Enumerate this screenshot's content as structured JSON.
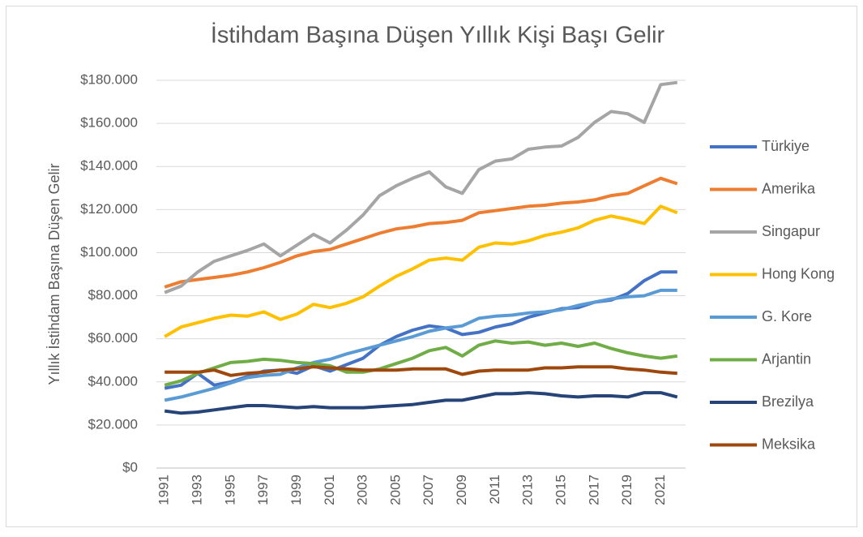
{
  "chart_data": {
    "type": "line",
    "title": "İstihdam Başına Düşen Yıllık Kişi Başı Gelir",
    "y_label": "Yıllık İstihdam Başına Düşen Gelir",
    "categories": [
      "1991",
      null,
      "1993",
      null,
      "1995",
      null,
      "1997",
      null,
      "1999",
      null,
      "2001",
      null,
      "2003",
      null,
      "2005",
      null,
      "2007",
      null,
      "2009",
      null,
      "2011",
      null,
      "2013",
      null,
      "2015",
      null,
      "2017",
      null,
      "2019",
      null,
      "2021",
      null
    ],
    "ylim": [
      0,
      180000
    ],
    "yticks": [
      {
        "value": 0,
        "label": "$0"
      },
      {
        "value": 20000,
        "label": "$20.000"
      },
      {
        "value": 40000,
        "label": "$40.000"
      },
      {
        "value": 60000,
        "label": "$60.000"
      },
      {
        "value": 80000,
        "label": "$80.000"
      },
      {
        "value": 100000,
        "label": "$100.000"
      },
      {
        "value": 120000,
        "label": "$120.000"
      },
      {
        "value": 140000,
        "label": "$140.000"
      },
      {
        "value": 160000,
        "label": "$160.000"
      },
      {
        "value": 180000,
        "label": "$180.000"
      }
    ],
    "grid": true,
    "legend": "right",
    "series": [
      {
        "name": "Türkiye",
        "color": "#4472c4",
        "values": [
          37000,
          38500,
          44000,
          38500,
          40000,
          42500,
          45000,
          45500,
          44000,
          47500,
          45000,
          48000,
          51000,
          57000,
          61000,
          64000,
          66000,
          65000,
          62000,
          63000,
          65500,
          67000,
          70000,
          72000,
          74000,
          74500,
          77000,
          78000,
          81000,
          87000,
          91000,
          91000
        ]
      },
      {
        "name": "Amerika",
        "color": "#ed7d31",
        "values": [
          84000,
          86500,
          87500,
          88500,
          89500,
          91000,
          93000,
          95500,
          98500,
          100500,
          101500,
          104000,
          106500,
          109000,
          111000,
          112000,
          113500,
          114000,
          115000,
          118500,
          119500,
          120500,
          121500,
          122000,
          123000,
          123500,
          124500,
          126500,
          127500,
          131000,
          134500,
          132000
        ]
      },
      {
        "name": "Singapur",
        "color": "#a5a5a5",
        "values": [
          81500,
          84500,
          91000,
          96000,
          98500,
          101000,
          104000,
          98500,
          103500,
          108500,
          104500,
          110500,
          117500,
          126500,
          131000,
          134500,
          137500,
          130500,
          127500,
          138500,
          142500,
          143500,
          148000,
          149000,
          149500,
          153500,
          160500,
          165500,
          164500,
          160500,
          178000,
          179000
        ]
      },
      {
        "name": "Hong Kong",
        "color": "#ffc000",
        "values": [
          61000,
          65500,
          67500,
          69500,
          71000,
          70500,
          72500,
          69000,
          71500,
          76000,
          74500,
          76500,
          79500,
          84500,
          89000,
          92500,
          96500,
          97500,
          96500,
          102500,
          104500,
          104000,
          105500,
          108000,
          109500,
          111500,
          115000,
          117000,
          115500,
          113500,
          121500,
          118500
        ]
      },
      {
        "name": "G. Kore",
        "color": "#5b9bd5",
        "values": [
          31500,
          33000,
          35000,
          37000,
          39500,
          42000,
          43000,
          43500,
          46500,
          49000,
          50500,
          53000,
          55000,
          57000,
          59000,
          61000,
          63500,
          65000,
          66000,
          69500,
          70500,
          71000,
          72000,
          72500,
          73500,
          75500,
          77000,
          78500,
          79500,
          80000,
          82500,
          82500
        ]
      },
      {
        "name": "Arjantin",
        "color": "#70ad47",
        "values": [
          38500,
          40500,
          44000,
          46500,
          49000,
          49500,
          50500,
          50000,
          49000,
          48500,
          47500,
          44500,
          44500,
          46000,
          48500,
          51000,
          54500,
          56000,
          52000,
          57000,
          59000,
          58000,
          58500,
          57000,
          58000,
          56500,
          58000,
          55500,
          53500,
          52000,
          51000,
          52000
        ]
      },
      {
        "name": "Brezilya",
        "color": "#264478",
        "values": [
          26500,
          25500,
          26000,
          27000,
          28000,
          29000,
          29000,
          28500,
          28000,
          28500,
          28000,
          28000,
          28000,
          28500,
          29000,
          29500,
          30500,
          31500,
          31500,
          33000,
          34500,
          34500,
          35000,
          34500,
          33500,
          33000,
          33500,
          33500,
          33000,
          35000,
          35000,
          33000
        ]
      },
      {
        "name": "Meksika",
        "color": "#9e480e",
        "values": [
          44500,
          44500,
          44500,
          45500,
          43000,
          44000,
          44500,
          45500,
          46000,
          47000,
          46500,
          46000,
          45500,
          45500,
          45500,
          46000,
          46000,
          46000,
          43500,
          45000,
          45500,
          45500,
          45500,
          46500,
          46500,
          47000,
          47000,
          47000,
          46000,
          45500,
          44500,
          44000
        ]
      }
    ]
  }
}
